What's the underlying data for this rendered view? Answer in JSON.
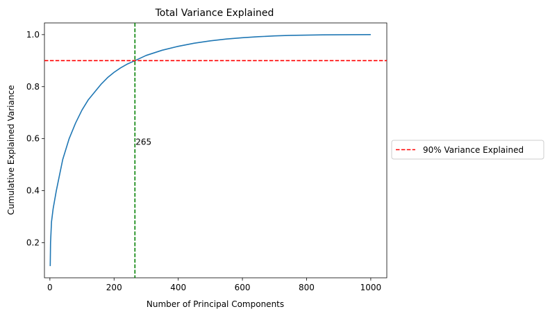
{
  "chart_data": {
    "type": "line",
    "title": "Total Variance Explained",
    "xlabel": "Number of Principal Components",
    "ylabel": "Cumulative Explained Variance",
    "xlim": [
      -17,
      1050
    ],
    "ylim": [
      0.065,
      1.045
    ],
    "xticks": [
      0,
      200,
      400,
      600,
      800,
      1000
    ],
    "yticks": [
      0.2,
      0.4,
      0.6,
      0.8,
      1.0
    ],
    "xtick_labels": [
      "0",
      "200",
      "400",
      "600",
      "800",
      "1000"
    ],
    "ytick_labels": [
      "0.2",
      "0.4",
      "0.6",
      "0.8",
      "1.0"
    ],
    "grid": false,
    "series": [
      {
        "color": "#1f77b4",
        "x": [
          1,
          2,
          5,
          10,
          20,
          30,
          40,
          50,
          60,
          80,
          100,
          120,
          140,
          160,
          180,
          200,
          220,
          240,
          265,
          300,
          350,
          400,
          450,
          500,
          550,
          600,
          650,
          700,
          750,
          800,
          850,
          900,
          950,
          1000
        ],
        "y": [
          0.11,
          0.2,
          0.28,
          0.33,
          0.4,
          0.46,
          0.52,
          0.56,
          0.6,
          0.66,
          0.71,
          0.75,
          0.78,
          0.81,
          0.835,
          0.855,
          0.872,
          0.886,
          0.9,
          0.92,
          0.94,
          0.955,
          0.967,
          0.976,
          0.983,
          0.988,
          0.992,
          0.995,
          0.997,
          0.998,
          0.999,
          0.9995,
          0.9998,
          1.0
        ]
      }
    ],
    "hline": {
      "y": 0.9,
      "color": "#ff0000",
      "label": "90% Variance Explained"
    },
    "vline": {
      "x": 265,
      "color": "#008000"
    },
    "annotation": {
      "text": "265",
      "x": 265,
      "y": 0.59
    },
    "legend": {
      "position": "outside-right",
      "entries": [
        "90% Variance Explained"
      ]
    }
  }
}
